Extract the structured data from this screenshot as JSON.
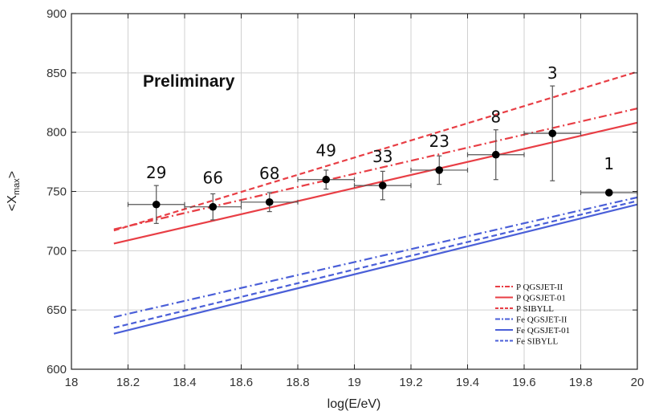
{
  "chart_data": {
    "type": "line",
    "title": "",
    "annotation": "Preliminary",
    "xlabel": "log(E/eV)",
    "ylabel": "<X_max>",
    "ylabel_main": "<X",
    "ylabel_sub": "max",
    "ylabel_close": ">",
    "xlim": [
      18,
      20
    ],
    "ylim": [
      600,
      900
    ],
    "grid": true,
    "xticks": [
      18,
      18.2,
      18.4,
      18.6,
      18.8,
      19,
      19.2,
      19.4,
      19.6,
      19.8,
      20
    ],
    "xtick_labels": [
      "18",
      "18.2",
      "18.4",
      "18.6",
      "18.8",
      "19",
      "19.2",
      "19.4",
      "19.6",
      "19.8",
      "20"
    ],
    "yticks": [
      600,
      650,
      700,
      750,
      800,
      850,
      900
    ],
    "ytick_labels": [
      "600",
      "650",
      "700",
      "750",
      "800",
      "850",
      "900"
    ],
    "data_points": [
      {
        "x": 18.3,
        "y": 739,
        "xerr": 0.1,
        "yerr": 16,
        "count": "29"
      },
      {
        "x": 18.5,
        "y": 737,
        "xerr": 0.1,
        "yerr": 11,
        "count": "66"
      },
      {
        "x": 18.7,
        "y": 741,
        "xerr": 0.1,
        "yerr": 8,
        "count": "68"
      },
      {
        "x": 18.9,
        "y": 760,
        "xerr": 0.1,
        "yerr": 8,
        "count": "49"
      },
      {
        "x": 19.1,
        "y": 755,
        "xerr": 0.1,
        "yerr": 12,
        "count": "33"
      },
      {
        "x": 19.3,
        "y": 768,
        "xerr": 0.1,
        "yerr": 12,
        "count": "23"
      },
      {
        "x": 19.5,
        "y": 781,
        "xerr": 0.1,
        "yerr": 21,
        "count": "8"
      },
      {
        "x": 19.7,
        "y": 799,
        "xerr": 0.1,
        "yerr": 40,
        "count": "3"
      },
      {
        "x": 19.9,
        "y": 749,
        "xerr": 0.1,
        "yerr": 0,
        "count": "1"
      }
    ],
    "series": [
      {
        "name": "P  QGSJET-II",
        "label": "P   QGSJET-II",
        "color": "#e83e45",
        "dash": "dashdot",
        "x": [
          18.15,
          20
        ],
        "y": [
          718,
          820
        ]
      },
      {
        "name": "P  QGSJET-01",
        "label": "P   QGSJET-01",
        "color": "#e83e45",
        "dash": "solid",
        "x": [
          18.15,
          20
        ],
        "y": [
          706,
          808
        ]
      },
      {
        "name": "P  SIBYLL",
        "label": "P   SIBYLL",
        "color": "#e83e45",
        "dash": "dashed",
        "x": [
          18.15,
          20
        ],
        "y": [
          717,
          851
        ]
      },
      {
        "name": "Fe  QGSJET-II",
        "label": "Fe  QGSJET-II",
        "color": "#4a5fd8",
        "dash": "dashdot",
        "x": [
          18.15,
          20
        ],
        "y": [
          644,
          745
        ]
      },
      {
        "name": "Fe  QGSJET-01",
        "label": "Fe  QGSJET-01",
        "color": "#4a5fd8",
        "dash": "solid",
        "x": [
          18.15,
          20
        ],
        "y": [
          630,
          739
        ]
      },
      {
        "name": "Fe  SIBYLL",
        "label": "Fe  SIBYLL",
        "color": "#4a5fd8",
        "dash": "dashed",
        "x": [
          18.15,
          20
        ],
        "y": [
          635,
          742
        ]
      }
    ],
    "legend_position": "bottom-right"
  }
}
